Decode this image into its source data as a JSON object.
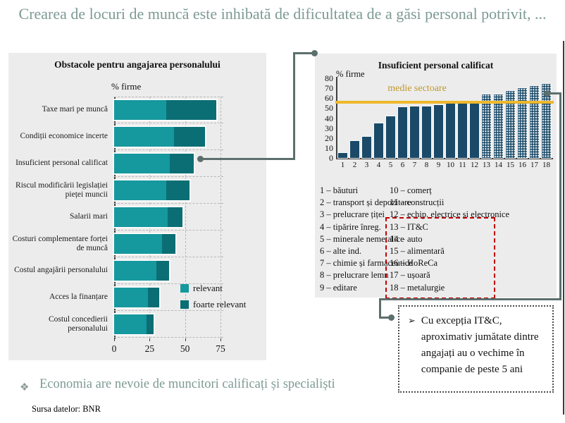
{
  "slide_title": "Crearea de locuri de muncă este inhibată de dificultatea de a găsi personal potrivit, ...",
  "colors": {
    "relevant": "#15989e",
    "foarte_relevant": "#0b6e74",
    "navy": "#1a4a68",
    "gold": "#eeb82c",
    "gold_text": "#c0992b",
    "panel_gray": "#ececec",
    "title_gray": "#7d9a94",
    "connector_gray": "#5c6f6d",
    "highlight_red": "#c00000"
  },
  "chart_data": [
    {
      "type": "bar",
      "orientation": "horizontal",
      "stacked": true,
      "title": "Obstacole pentru angajarea personalului",
      "unit_label": "% firme",
      "xticks": [
        0,
        25,
        50,
        75
      ],
      "xlim": [
        0,
        77
      ],
      "grid": "dashed",
      "legend_position": "lower-right-inside",
      "legend": [
        "relevant",
        "foarte relevant"
      ],
      "rows": [
        {
          "label": "Taxe mari pe muncă",
          "relevant": 37,
          "foarte_relevant": 35
        },
        {
          "label": "Condiții economice incerte",
          "relevant": 42,
          "foarte_relevant": 22
        },
        {
          "label": "Insuficient personal calificat",
          "relevant": 39,
          "foarte_relevant": 17
        },
        {
          "label": "Riscul modificării legislației pieței muncii",
          "relevant": 37,
          "foarte_relevant": 16
        },
        {
          "label": "Salarii mari",
          "relevant": 38,
          "foarte_relevant": 10
        },
        {
          "label": "Costuri complementare forței de muncă",
          "relevant": 34,
          "foarte_relevant": 9
        },
        {
          "label": "Costul angajării personalului",
          "relevant": 30,
          "foarte_relevant": 9
        },
        {
          "label": "Acces la finanțare",
          "relevant": 24,
          "foarte_relevant": 8
        },
        {
          "label": "Costul concedierii personalului",
          "relevant": 23,
          "foarte_relevant": 5
        }
      ]
    },
    {
      "type": "bar",
      "orientation": "vertical",
      "title": "Insuficient personal calificat",
      "unit_label": "% firme",
      "categories": [
        1,
        2,
        3,
        4,
        5,
        6,
        7,
        8,
        9,
        10,
        11,
        12,
        13,
        14,
        15,
        16,
        17,
        18
      ],
      "values": [
        5,
        17,
        21,
        35,
        42,
        51,
        52,
        52,
        53,
        55,
        55,
        56,
        64,
        64,
        67,
        70,
        72,
        74
      ],
      "patterned_bars_from": 13,
      "ylim": [
        0,
        80
      ],
      "yticks": [
        0,
        10,
        20,
        30,
        40,
        50,
        60,
        70,
        80
      ],
      "avg_line": {
        "label": "medie sectoare",
        "value": 56
      },
      "sectors": [
        "1 – băuturi",
        "2 – transport și depozitare",
        "3 – prelucrare țiței",
        "4 – tipărire înreg.",
        "5 – minerale nemetalice",
        "6 – alte ind.",
        "7 – chimie și farmaceutice",
        "8 – prelucrare lemn",
        "9 – editare",
        "10 – comerț",
        "11 – construcții",
        "12 – echip. electrice și electronice",
        "13 – IT&C",
        "14 – auto",
        "15 – alimentară",
        "16 – HoReCa",
        "17 – ușoară",
        "18 – metalurgie"
      ],
      "highlighted_sectors": [
        "13",
        "14",
        "15",
        "16",
        "17",
        "18"
      ]
    }
  ],
  "callout": {
    "bullet": "➢",
    "text": "Cu excepția IT&C, aproximativ jumătate dintre angajați au o vechime în companie de peste 5 ani"
  },
  "footer": {
    "bullet": "❖",
    "text": "Economia are nevoie de muncitori calificați și specialiști",
    "source": "Sursa datelor: BNR"
  }
}
